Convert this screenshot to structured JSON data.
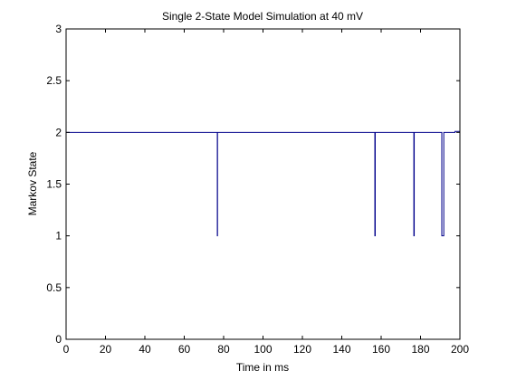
{
  "chart_data": {
    "type": "line",
    "title": "Single 2-State Model Simulation at 40 mV",
    "xlabel": "Time in ms",
    "ylabel": "Markov State",
    "xlim": [
      0,
      200
    ],
    "ylim": [
      0,
      3
    ],
    "xticks": [
      0,
      20,
      40,
      60,
      80,
      100,
      120,
      140,
      160,
      180,
      200
    ],
    "yticks": [
      0,
      0.5,
      1,
      1.5,
      2,
      2.5,
      3
    ],
    "xtick_labels": [
      "0",
      "20",
      "40",
      "60",
      "80",
      "100",
      "120",
      "140",
      "160",
      "180",
      "200"
    ],
    "ytick_labels": [
      "0",
      "0.5",
      "1",
      "1.5",
      "2",
      "2.5",
      "3"
    ],
    "grid": false,
    "line_color": "#00008b",
    "series": [
      {
        "x": [
          0,
          76.8,
          76.8,
          76.9,
          76.9,
          156.8,
          156.8,
          157.0,
          157.0,
          176.6,
          176.6,
          176.8,
          176.8,
          190.8,
          190.8,
          191.8,
          191.8,
          197.5,
          197.5,
          200
        ],
        "y": [
          2,
          2,
          1,
          1,
          2,
          2,
          1,
          1,
          2,
          2,
          1,
          1,
          2,
          2,
          1,
          1,
          2,
          2,
          2.01,
          2.01
        ]
      }
    ]
  }
}
